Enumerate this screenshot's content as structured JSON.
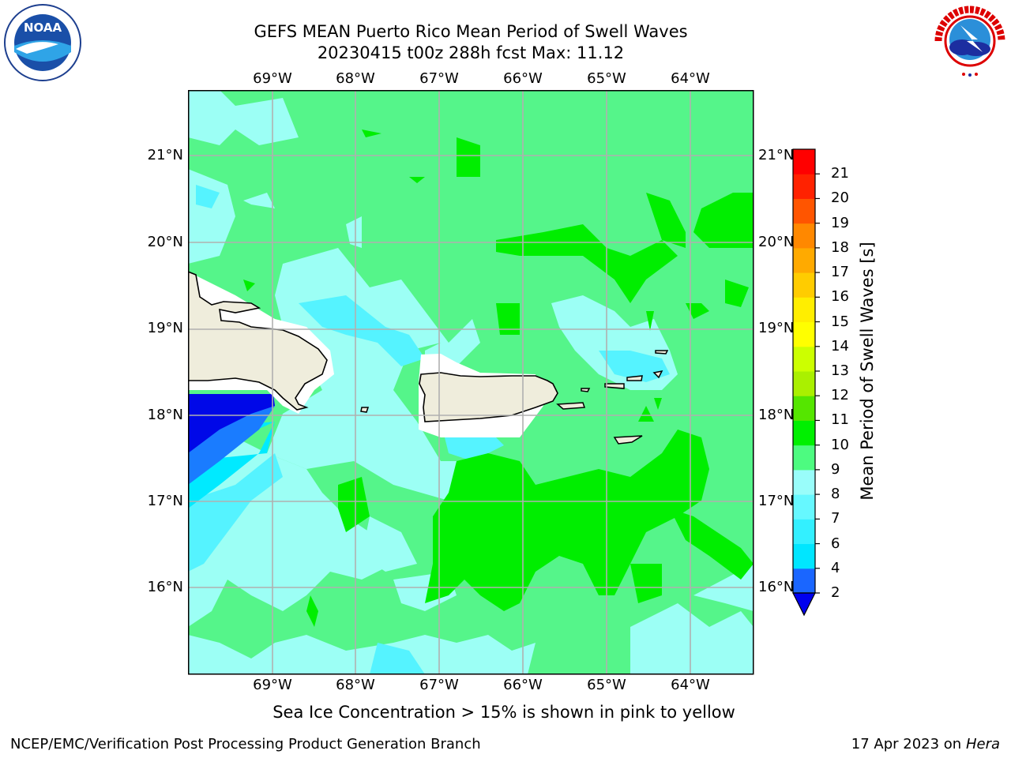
{
  "title": {
    "line1": "GEFS MEAN Puerto Rico Mean Period of Swell Waves",
    "line2": "20230415 t00z 288h fcst   Max: 11.12"
  },
  "map": {
    "lon_labels": [
      "69°W",
      "68°W",
      "67°W",
      "66°W",
      "65°W",
      "64°W"
    ],
    "lat_labels": [
      "21°N",
      "20°N",
      "19°N",
      "18°N",
      "17°N",
      "16°N"
    ],
    "colorbar": {
      "label": "Mean Period of Swell Waves [s]",
      "ticks": [
        "2",
        "4",
        "6",
        "7",
        "8",
        "9",
        "10",
        "11",
        "12",
        "13",
        "14",
        "15",
        "16",
        "17",
        "18",
        "19",
        "20",
        "21"
      ],
      "colors": [
        "#1a66ff",
        "#00e6ff",
        "#33f0ff",
        "#66f8ff",
        "#99fdfa",
        "#4dfb80",
        "#00f000",
        "#55e600",
        "#aaf000",
        "#ccff00",
        "#ffff00",
        "#ffee00",
        "#ffcc00",
        "#ffaa00",
        "#ff8800",
        "#ff5500",
        "#ff2200",
        "#ff0000"
      ],
      "under_color": "#0000ee"
    },
    "field_colors": {
      "ocean_base": "#55f58a",
      "band_8_9": "#9cfff5",
      "band_7_8": "#55f3ff",
      "band_6": "#00eaff",
      "band_4": "#1a7cff",
      "band_low": "#0008e8",
      "band_10_11": "#00ee00",
      "land": "#efeddc"
    }
  },
  "caption": "Sea Ice Concentration > 15% is shown in pink to yellow",
  "footer": {
    "left": "NCEP/EMC/Verification Post Processing Product Generation Branch",
    "right_prefix": "17 Apr 2023 on ",
    "right_host": "Hera"
  },
  "logos": {
    "noaa": "NOAA",
    "noaa_ring": "NATIONAL OCEANIC AND ATMOSPHERIC ADMINISTRATION · U.S. DEPARTMENT OF COMMERCE",
    "nws_ring": "NATIONAL WEATHER SERVICE"
  }
}
